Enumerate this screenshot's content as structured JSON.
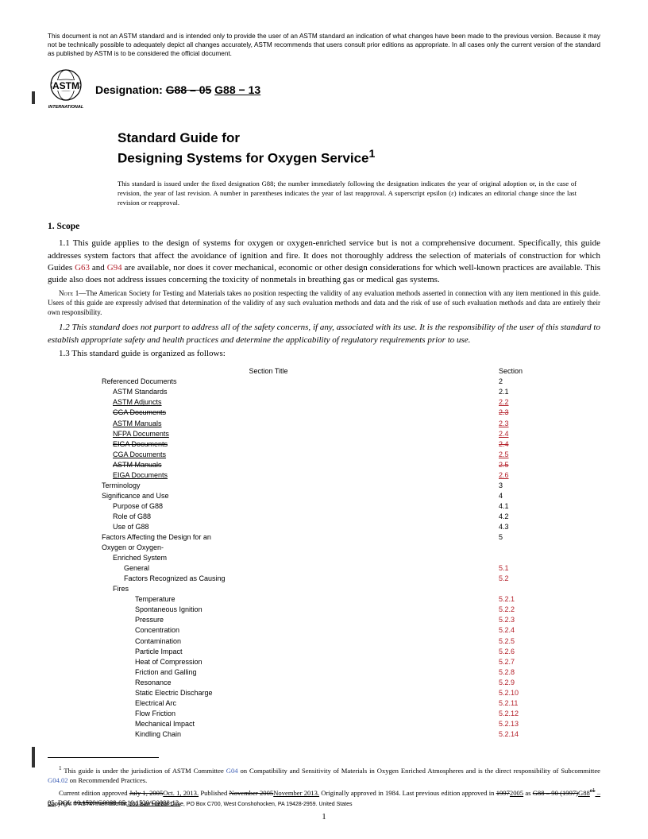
{
  "disclaimer": "This document is not an ASTM standard and is intended only to provide the user of an ASTM standard an indication of what changes have been made to the previous version. Because it may not be technically possible to adequately depict all changes accurately, ASTM recommends that users consult prior editions as appropriate. In all cases only the current version of the standard as published by ASTM is to be considered the official document.",
  "logo_top": "ASTM",
  "logo_bottom": "INTERNATIONAL",
  "designation_label": "Designation:",
  "designation_old": "G88 – 05",
  "designation_new": "G88 − 13",
  "title_line1": "Standard Guide for",
  "title_line2": "Designing Systems for Oxygen Service",
  "title_sup": "1",
  "issued_note": "This standard is issued under the fixed designation G88; the number immediately following the designation indicates the year of original adoption or, in the case of revision, the year of last revision. A number in parentheses indicates the year of last reapproval. A superscript epsilon (ε) indicates an editorial change since the last revision or reapproval.",
  "scope_head": "1. Scope",
  "p11a": "1.1 This guide applies to the design of systems for oxygen or oxygen-enriched service but is not a comprehensive document. Specifically, this guide addresses system factors that affect the avoidance of ignition and fire. It does not thoroughly address the selection of materials of construction for which Guides ",
  "g63": "G63",
  "p11b": " and ",
  "g94": "G94",
  "p11c": " are available, nor does it cover mechanical, economic or other design considerations for which well-known practices are available. This guide also does not address issues concerning the toxicity of nonmetals in breathing gas or medical gas systems.",
  "note_label": "Note",
  "note_num": " 1—",
  "note1": "The American Society for Testing and Materials takes no position respecting the validity of any evaluation methods asserted in connection with any item mentioned in this guide. Users of this guide are expressly advised that determination of the validity of any such evaluation methods and data and the risk of use of such evaluation methods and data are entirely their own responsibility.",
  "p12": "1.2 This standard does not purport to address all of the safety concerns, if any, associated with its use. It is the responsibility of the user of this standard to establish appropriate safety and health practices and determine the applicability of regulatory requirements prior to use.",
  "p13": "1.3 This standard guide is organized as follows:",
  "toc_header_title": "Section Title",
  "toc_header_sec": "Section",
  "toc": [
    {
      "title": "Referenced Documents",
      "sec": "2",
      "pad": 0,
      "secBlack": true
    },
    {
      "title": "ASTM Standards",
      "sec": "2.1",
      "pad": 1,
      "secBlack": true
    },
    {
      "title": "ASTM Adjuncts",
      "sec": "2.2",
      "pad": 1,
      "titleUnder": true,
      "secUnder": true
    },
    {
      "title": "CGA Documents",
      "sec": "2.3",
      "pad": 1,
      "titleStrike": true,
      "secStrike": true
    },
    {
      "title": "ASTM Manuals",
      "sec": "2.3",
      "pad": 1,
      "titleUnder": true,
      "secUnder": true
    },
    {
      "title": "NFPA Documents",
      "sec": "2.4",
      "pad": 1,
      "titleUnder": true,
      "secUnder": true
    },
    {
      "title": "EIGA Documents",
      "sec": "2.4",
      "pad": 1,
      "titleStrike": true,
      "secStrike": true
    },
    {
      "title": "CGA Documents",
      "sec": "2.5",
      "pad": 1,
      "titleUnder": true,
      "secUnder": true
    },
    {
      "title": "ASTM Manuals",
      "sec": "2.5",
      "pad": 1,
      "titleStrike": true,
      "secStrike": true
    },
    {
      "title": "EIGA Documents",
      "sec": "2.6",
      "pad": 1,
      "titleUnder": true,
      "secUnder": true
    },
    {
      "title": "Terminology",
      "sec": "3",
      "pad": 0,
      "secBlack": true
    },
    {
      "title": "Significance and Use",
      "sec": "4",
      "pad": 0,
      "secBlack": true
    },
    {
      "title": "Purpose of G88",
      "sec": "4.1",
      "pad": 1,
      "secBlack": true
    },
    {
      "title": "Role of G88",
      "sec": "4.2",
      "pad": 1,
      "secBlack": true
    },
    {
      "title": "Use of G88",
      "sec": "4.3",
      "pad": 1,
      "secBlack": true
    },
    {
      "title": "Factors Affecting the Design for an",
      "sec": "5",
      "pad": 0,
      "secBlack": true
    },
    {
      "title": "Oxygen or Oxygen-",
      "sec": "",
      "pad": 0
    },
    {
      "title": "Enriched System",
      "sec": "",
      "pad": 1
    },
    {
      "title": "General",
      "sec": "5.1",
      "pad": 2
    },
    {
      "title": "Factors Recognized as Causing",
      "sec": "5.2",
      "pad": 2
    },
    {
      "title": "Fires",
      "sec": "",
      "pad": 1
    },
    {
      "title": "Temperature",
      "sec": "5.2.1",
      "pad": 3
    },
    {
      "title": "Spontaneous Ignition",
      "sec": "5.2.2",
      "pad": 3
    },
    {
      "title": "Pressure",
      "sec": "5.2.3",
      "pad": 3
    },
    {
      "title": "Concentration",
      "sec": "5.2.4",
      "pad": 3
    },
    {
      "title": "Contamination",
      "sec": "5.2.5",
      "pad": 3
    },
    {
      "title": "Particle Impact",
      "sec": "5.2.6",
      "pad": 3
    },
    {
      "title": "Heat of Compression",
      "sec": "5.2.7",
      "pad": 3
    },
    {
      "title": "Friction and Galling",
      "sec": "5.2.8",
      "pad": 3
    },
    {
      "title": "Resonance",
      "sec": "5.2.9",
      "pad": 3
    },
    {
      "title": "Static Electric Discharge",
      "sec": "5.2.10",
      "pad": 3
    },
    {
      "title": "Electrical Arc",
      "sec": "5.2.11",
      "pad": 3
    },
    {
      "title": "Flow Friction",
      "sec": "5.2.12",
      "pad": 3
    },
    {
      "title": "Mechanical Impact",
      "sec": "5.2.13",
      "pad": 3
    },
    {
      "title": "Kindling Chain",
      "sec": "5.2.14",
      "pad": 3
    }
  ],
  "fn1_sup": "1",
  "fn1a": " This guide is under the jurisdiction of ASTM Committee ",
  "fn1_link1": "G04",
  "fn1b": " on Compatibility and Sensitivity of Materials in Oxygen Enriched Atmospheres and is the direct responsibility of Subcommittee ",
  "fn1_link2": "G04.02",
  "fn1c": " on Recommended Practices.",
  "fn2a": "Current edition approved ",
  "fn2_s1": "July 1, 2005",
  "fn2_u1": "Oct. 1, 2013.",
  "fn2b": " Published ",
  "fn2_s2": "November 2005",
  "fn2_u2": "November 2013.",
  "fn2c": " Originally approved in 1984. Last previous edition approved in ",
  "fn2_s3": "1997",
  "fn2_u3": "2005",
  "fn2d": " as ",
  "fn2_s4": "G88 – 90 (1997)",
  "fn2_u4": "G88",
  "fn2_s5": "ε1",
  "fn2_u5": " – 05",
  "fn2e": ". DOI: ",
  "fn2_s6": "10.1520/G0088-05.",
  "fn2_u6": "10.1520/G0088-13.",
  "copyright": "Copyright © ASTM International, 100 Barr Harbor Drive, PO Box C700, West Conshohocken, PA 19428-2959. United States",
  "pagenum": "1"
}
